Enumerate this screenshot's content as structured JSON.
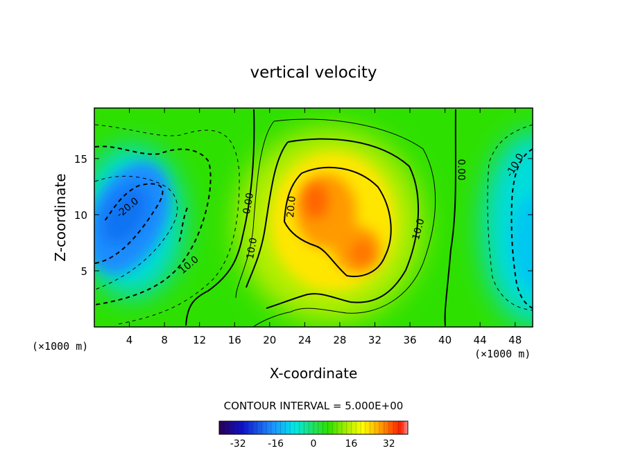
{
  "chart_data": {
    "type": "heatmap",
    "title": "vertical velocity",
    "xlabel": "X-coordinate",
    "ylabel": "Z-coordinate",
    "x_unit_left": "(×1000 m)",
    "x_unit_right": "(×1000 m)",
    "xlim": [
      0,
      50
    ],
    "ylim": [
      0,
      19.5
    ],
    "x_ticks": [
      4,
      8,
      12,
      16,
      20,
      24,
      28,
      32,
      36,
      40,
      44,
      48
    ],
    "y_ticks": [
      5,
      10,
      15
    ],
    "contour_interval_label": "CONTOUR INTERVAL = 5.000E+00",
    "value_range": [
      -40,
      40
    ],
    "colorbar_ticks": [
      -32,
      -16,
      0,
      16,
      32
    ],
    "contour_labels": [
      {
        "text": "-20.0",
        "x": 3.8,
        "z": 10.6,
        "angle": -40
      },
      {
        "text": "10.0",
        "x": 10.8,
        "z": 5.5,
        "angle": -40
      },
      {
        "text": "0.00",
        "x": 17.6,
        "z": 11.0,
        "angle": -80
      },
      {
        "text": "10.0",
        "x": 18.0,
        "z": 7.0,
        "angle": -80
      },
      {
        "text": "20.0",
        "x": 22.5,
        "z": 10.7,
        "angle": -85
      },
      {
        "text": "10.0",
        "x": 37.0,
        "z": 8.7,
        "angle": -75
      },
      {
        "text": "0.00",
        "x": 41.8,
        "z": 14.0,
        "angle": 90
      },
      {
        "text": "-10.0",
        "x": 48.0,
        "z": 14.4,
        "angle": -60
      }
    ],
    "features": [
      {
        "kind": "downdraft",
        "x": 4.0,
        "z": 10.0,
        "w": -25
      },
      {
        "kind": "updraft",
        "x": 25.0,
        "z": 11.0,
        "w": 32
      },
      {
        "kind": "updraft",
        "x": 30.0,
        "z": 7.5,
        "w": 28
      },
      {
        "kind": "downdraft",
        "x": 50.0,
        "z": 7.0,
        "w": -12
      }
    ],
    "colors": [
      "#2a0055",
      "#1010c8",
      "#1e90ff",
      "#00e8e8",
      "#22e060",
      "#2ee000",
      "#b0ee00",
      "#ffff00",
      "#ffb000",
      "#ff5a00",
      "#ff2000",
      "#ff9090"
    ]
  }
}
